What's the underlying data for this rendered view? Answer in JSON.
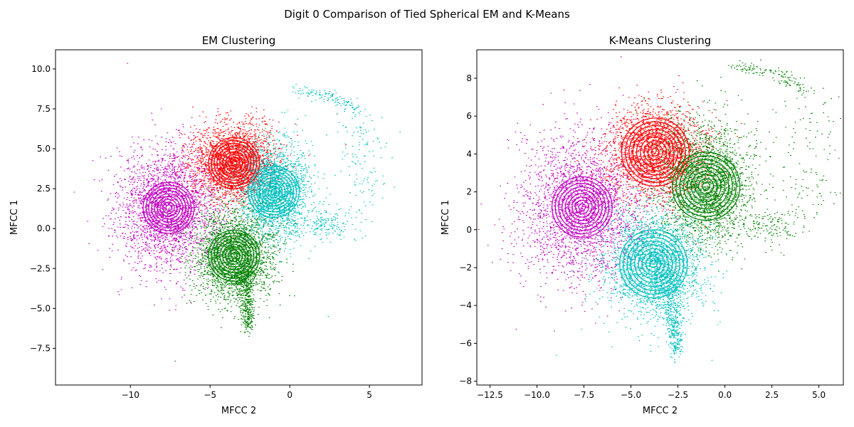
{
  "figure": {
    "suptitle": "Digit 0 Comparison of Tied Spherical EM and K-Means"
  },
  "colors": {
    "red": "#ff0000",
    "magenta": "#bf00bf",
    "cyan": "#00bfbf",
    "green": "#008000"
  },
  "chart_data": [
    {
      "type": "scatter",
      "title": "EM Clustering",
      "xlabel": "MFCC 2",
      "ylabel": "MFCC 1",
      "xlim": [
        -14.7,
        8.3
      ],
      "ylim": [
        -9.8,
        11.2
      ],
      "xticks": [
        -10,
        -5,
        0,
        5
      ],
      "xtick_labels": [
        "−10",
        "−5",
        "0",
        "5"
      ],
      "yticks": [
        -7.5,
        -5.0,
        -2.5,
        0.0,
        2.5,
        5.0,
        7.5,
        10.0
      ],
      "ytick_labels": [
        "−7.5",
        "−5.0",
        "−2.5",
        "0.0",
        "2.5",
        "5.0",
        "7.5",
        "10.0"
      ],
      "grid": false,
      "clusters": [
        {
          "color": "magenta",
          "center": [
            -7.6,
            1.3
          ],
          "spread": [
            1.6,
            1.9
          ],
          "count": 2600,
          "contour_radius": 1.6
        },
        {
          "color": "red",
          "center": [
            -3.5,
            4.1
          ],
          "spread": [
            1.3,
            1.2
          ],
          "count": 2400,
          "contour_radius": 1.6
        },
        {
          "color": "cyan",
          "center": [
            -1.0,
            2.3
          ],
          "spread": [
            1.1,
            1.5
          ],
          "count": 2200,
          "contour_radius": 1.6
        },
        {
          "color": "green",
          "center": [
            -3.5,
            -1.7
          ],
          "spread": [
            1.3,
            1.5
          ],
          "count": 2300,
          "contour_radius": 1.6
        }
      ],
      "extra_regions": [
        {
          "color": "green",
          "kind": "tail",
          "from": [
            -3.0,
            -2.0
          ],
          "to": [
            -2.6,
            -6.2
          ],
          "count": 500
        },
        {
          "color": "cyan",
          "kind": "arc",
          "count": 260
        },
        {
          "color": "cyan",
          "kind": "blob",
          "center": [
            2.5,
            0.2
          ],
          "spread": [
            0.9,
            0.5
          ],
          "count": 150
        }
      ]
    },
    {
      "type": "scatter",
      "title": "K-Means Clustering",
      "xlabel": "MFCC 2",
      "ylabel": "MFCC 1",
      "xlim": [
        -13.2,
        6.3
      ],
      "ylim": [
        -8.2,
        9.5
      ],
      "xticks": [
        -12.5,
        -10.0,
        -7.5,
        -5.0,
        -2.5,
        0.0,
        2.5,
        5.0
      ],
      "xtick_labels": [
        "−12.5",
        "−10.0",
        "−7.5",
        "−5.0",
        "−2.5",
        "0.0",
        "2.5",
        "5.0"
      ],
      "yticks": [
        -8,
        -6,
        -4,
        -2,
        0,
        2,
        4,
        6,
        8
      ],
      "ytick_labels": [
        "−8",
        "−6",
        "−4",
        "−2",
        "0",
        "2",
        "4",
        "6",
        "8"
      ],
      "grid": false,
      "clusters": [
        {
          "color": "magenta",
          "center": [
            -7.6,
            1.2
          ],
          "spread": [
            1.6,
            1.9
          ],
          "count": 2600,
          "contour_radius": 1.6
        },
        {
          "color": "red",
          "center": [
            -3.7,
            4.1
          ],
          "spread": [
            1.3,
            1.3
          ],
          "count": 2200,
          "contour_radius": 1.8
        },
        {
          "color": "green",
          "center": [
            -1.0,
            2.3
          ],
          "spread": [
            1.2,
            1.6
          ],
          "count": 2400,
          "contour_radius": 1.8
        },
        {
          "color": "cyan",
          "center": [
            -3.8,
            -1.8
          ],
          "spread": [
            1.3,
            1.4
          ],
          "count": 2300,
          "contour_radius": 1.8
        }
      ],
      "extra_regions": [
        {
          "color": "cyan",
          "kind": "tail",
          "from": [
            -3.0,
            -2.2
          ],
          "to": [
            -2.6,
            -6.5
          ],
          "count": 500
        },
        {
          "color": "green",
          "kind": "arc",
          "count": 260
        },
        {
          "color": "green",
          "kind": "blob",
          "center": [
            2.5,
            0.2
          ],
          "spread": [
            0.9,
            0.5
          ],
          "count": 150
        }
      ]
    }
  ]
}
